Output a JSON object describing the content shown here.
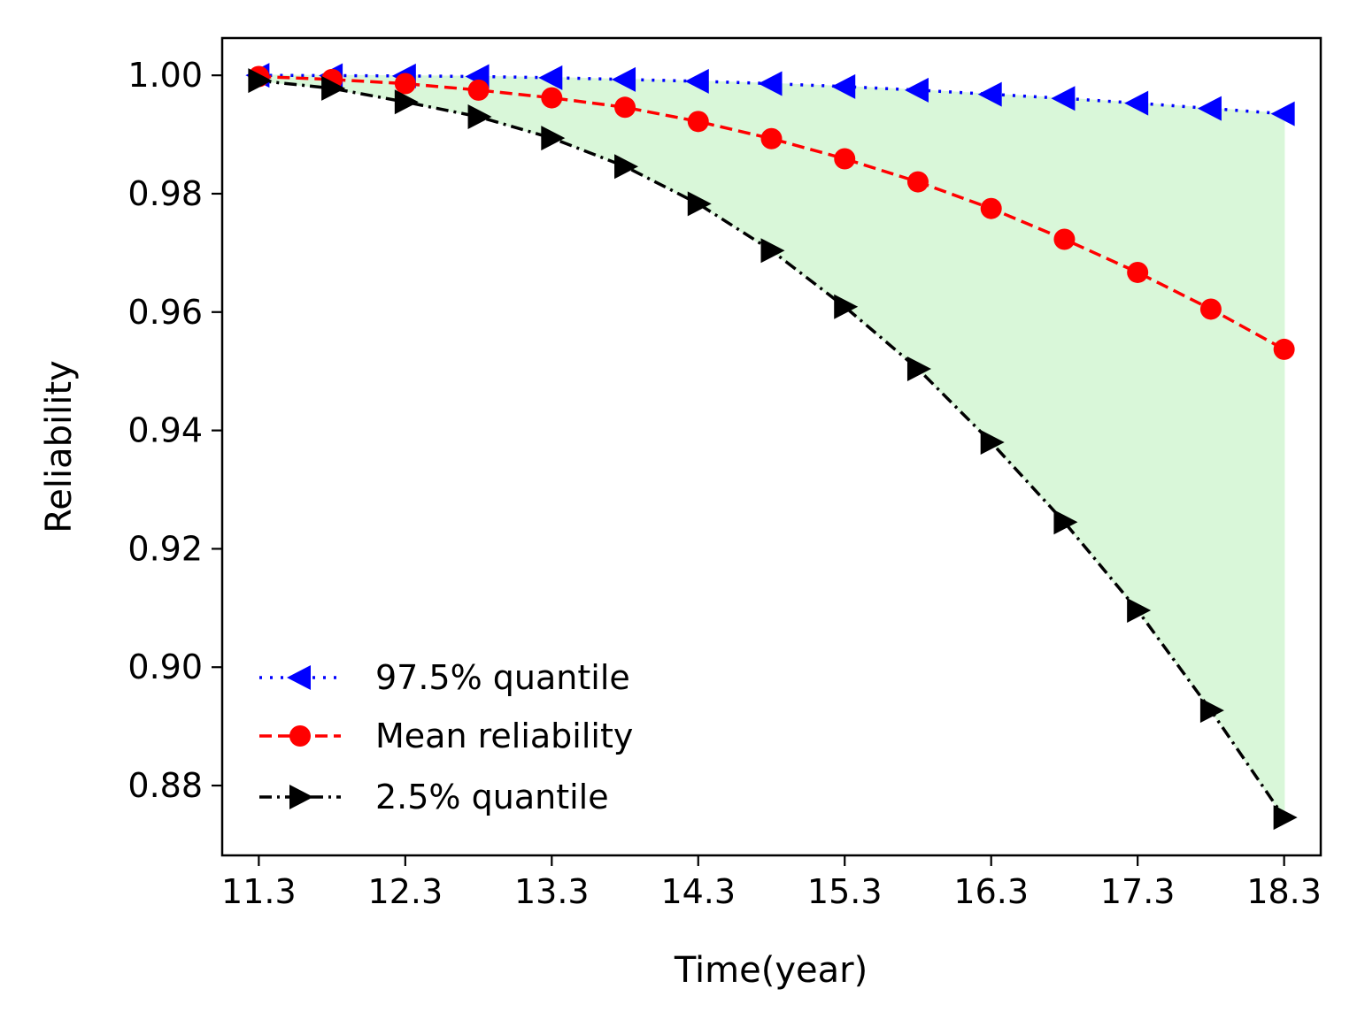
{
  "chart_data": {
    "type": "line",
    "title": "",
    "xlabel": "Time(year)",
    "ylabel": "Reliability",
    "xlim": [
      11.05,
      18.55
    ],
    "ylim": [
      0.8682,
      1.0063
    ],
    "x_ticks": [
      11.3,
      12.3,
      13.3,
      14.3,
      15.3,
      16.3,
      17.3,
      18.3
    ],
    "x_tick_labels": [
      "11.3",
      "12.3",
      "13.3",
      "14.3",
      "15.3",
      "16.3",
      "17.3",
      "18.3"
    ],
    "y_ticks": [
      0.88,
      0.9,
      0.92,
      0.94,
      0.96,
      0.98,
      1.0
    ],
    "y_tick_labels": [
      "0.88",
      "0.90",
      "0.92",
      "0.94",
      "0.96",
      "0.98",
      "1.00"
    ],
    "grid": false,
    "legend_position": "lower-left",
    "x": [
      11.3,
      11.8,
      12.3,
      12.8,
      13.3,
      13.8,
      14.3,
      14.8,
      15.3,
      15.8,
      16.3,
      16.8,
      17.3,
      17.8,
      18.3
    ],
    "fill_between": {
      "upper_series": 0,
      "lower_series": 2,
      "color": "#d9f7d9"
    },
    "series": [
      {
        "name": "97.5% quantile",
        "color": "#0000ff",
        "linestyle": "dotted",
        "marker": "triangle-left",
        "values": [
          1.0,
          0.99995,
          0.9999,
          0.9998,
          0.9996,
          0.9993,
          0.999,
          0.9986,
          0.9981,
          0.9975,
          0.9968,
          0.9961,
          0.9953,
          0.9944,
          0.9935
        ]
      },
      {
        "name": "Mean reliability",
        "color": "#ff0000",
        "linestyle": "dashed",
        "marker": "circle",
        "values": [
          0.9998,
          0.9993,
          0.9986,
          0.9975,
          0.9962,
          0.9946,
          0.9922,
          0.9893,
          0.9859,
          0.982,
          0.9775,
          0.9723,
          0.9667,
          0.9605,
          0.9537
        ]
      },
      {
        "name": "2.5% quantile",
        "color": "#000000",
        "linestyle": "dashdot",
        "marker": "triangle-right",
        "values": [
          0.9991,
          0.9978,
          0.9955,
          0.993,
          0.9894,
          0.9846,
          0.9783,
          0.9704,
          0.9609,
          0.9504,
          0.938,
          0.9245,
          0.9096,
          0.8927,
          0.8746
        ]
      }
    ]
  }
}
